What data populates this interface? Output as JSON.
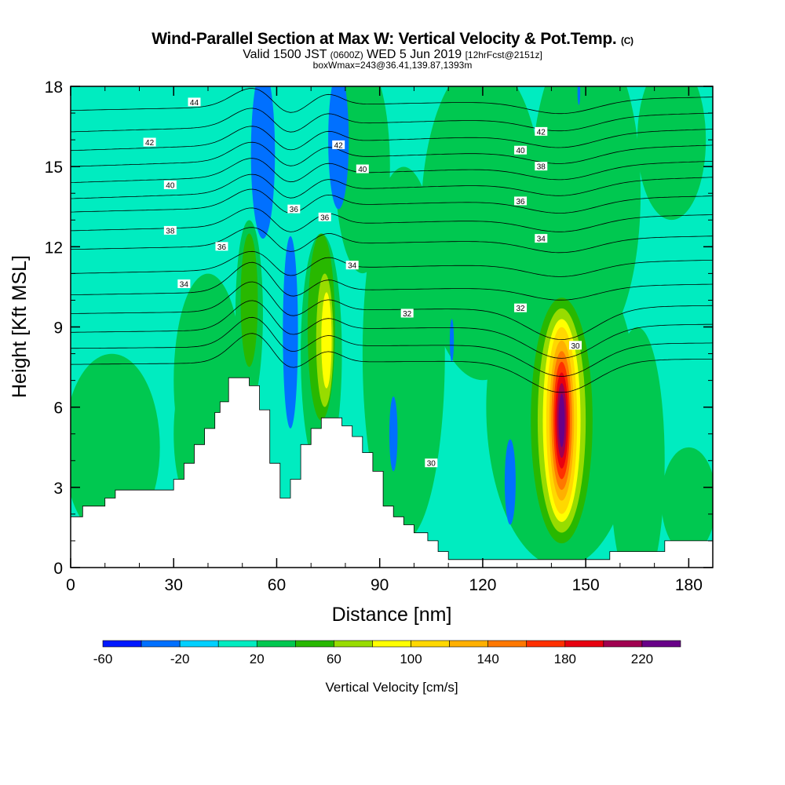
{
  "header": {
    "title": "Wind-Parallel Section at Max W: Vertical Velocity & Pot.Temp.",
    "copyright": "(C)",
    "valid_prefix": "Valid 1500 JST",
    "valid_utc": "(0600Z)",
    "valid_date": "WED 5 Jun 2019",
    "forecast": "[12hrFcst@2151z]",
    "box_info": "boxWmax=243@36.41,139.87,1393m"
  },
  "chart_data": {
    "type": "heatmap",
    "title": "Wind-Parallel Section at Max W: Vertical Velocity & Pot.Temp.",
    "xlabel": "Distance [nm]",
    "ylabel": "Height [Kft MSL]",
    "xlim": [
      0,
      187
    ],
    "ylim": [
      0,
      18
    ],
    "xticks": [
      "0",
      "30",
      "60",
      "90",
      "120",
      "150",
      "180"
    ],
    "yticks": [
      "0",
      "3",
      "6",
      "9",
      "12",
      "15",
      "18"
    ],
    "colorbar": {
      "label": "Vertical Velocity [cm/s]",
      "bounds": [
        -60,
        240
      ],
      "step": 20,
      "tick_labels": [
        "-60",
        "-20",
        "20",
        "60",
        "100",
        "140",
        "180",
        "220"
      ],
      "colors": [
        "#0018ff",
        "#0070ff",
        "#00d0ff",
        "#00ecc0",
        "#00c850",
        "#28b800",
        "#98dc00",
        "#ffff00",
        "#ffd800",
        "#ffb000",
        "#ff7800",
        "#ff3000",
        "#e80010",
        "#a00050",
        "#680088"
      ]
    },
    "terrain_kft": [
      [
        0,
        1.9
      ],
      [
        3.5,
        1.9
      ],
      [
        3.5,
        2.3
      ],
      [
        10,
        2.3
      ],
      [
        10,
        2.6
      ],
      [
        13,
        2.6
      ],
      [
        13,
        2.9
      ],
      [
        30,
        2.9
      ],
      [
        30,
        3.3
      ],
      [
        33,
        3.3
      ],
      [
        33,
        3.9
      ],
      [
        36,
        3.9
      ],
      [
        36,
        4.6
      ],
      [
        39,
        4.6
      ],
      [
        39,
        5.2
      ],
      [
        42,
        5.2
      ],
      [
        42,
        5.8
      ],
      [
        43.5,
        5.8
      ],
      [
        43.5,
        6.2
      ],
      [
        46,
        6.2
      ],
      [
        46,
        7.1
      ],
      [
        52,
        7.1
      ],
      [
        52,
        6.8
      ],
      [
        55,
        6.8
      ],
      [
        55,
        5.9
      ],
      [
        58,
        5.9
      ],
      [
        58,
        3.9
      ],
      [
        61,
        3.9
      ],
      [
        61,
        2.6
      ],
      [
        64,
        2.6
      ],
      [
        64,
        3.3
      ],
      [
        67,
        3.3
      ],
      [
        67,
        4.6
      ],
      [
        70,
        4.6
      ],
      [
        70,
        5.2
      ],
      [
        73,
        5.2
      ],
      [
        73,
        5.6
      ],
      [
        79,
        5.6
      ],
      [
        79,
        5.3
      ],
      [
        82,
        5.3
      ],
      [
        82,
        4.9
      ],
      [
        85,
        4.9
      ],
      [
        85,
        4.3
      ],
      [
        88,
        4.3
      ],
      [
        88,
        3.6
      ],
      [
        91,
        3.6
      ],
      [
        91,
        2.3
      ],
      [
        94,
        2.3
      ],
      [
        94,
        1.9
      ],
      [
        97,
        1.9
      ],
      [
        97,
        1.6
      ],
      [
        100,
        1.6
      ],
      [
        100,
        1.3
      ],
      [
        104,
        1.3
      ],
      [
        104,
        1.0
      ],
      [
        107,
        1.0
      ],
      [
        107,
        0.6
      ],
      [
        110,
        0.6
      ],
      [
        110,
        0.3
      ],
      [
        157,
        0.3
      ],
      [
        157,
        0.6
      ],
      [
        173,
        0.6
      ],
      [
        173,
        1.0
      ],
      [
        187,
        1.0
      ]
    ],
    "w_features": [
      {
        "kind": "updraft",
        "x": 143,
        "y": 5.5,
        "peak": 240
      },
      {
        "kind": "updraft",
        "x": 74,
        "y": 8.5,
        "peak": 90
      },
      {
        "kind": "updraft",
        "x": 52,
        "y": 10,
        "peak": 50
      },
      {
        "kind": "downdraft",
        "x": 57,
        "y": 15,
        "min": -40
      },
      {
        "kind": "downdraft",
        "x": 77,
        "y": 16,
        "min": -40
      },
      {
        "kind": "downdraft",
        "x": 64,
        "y": 8,
        "min": -40
      },
      {
        "kind": "downdraft",
        "x": 128,
        "y": 3.5,
        "min": -40
      }
    ],
    "theta_contours": [
      {
        "level": 30,
        "left_kft": 7.6,
        "right_kft": 7.8
      },
      {
        "level": 31,
        "left_kft": 8.2,
        "right_kft": 8.4
      },
      {
        "level": 32,
        "left_kft": 8.8,
        "right_kft": 9.1
      },
      {
        "level": 33,
        "left_kft": 9.5,
        "right_kft": 9.8
      },
      {
        "level": 34,
        "left_kft": 10.2,
        "right_kft": 10.6
      },
      {
        "level": 35,
        "left_kft": 11.0,
        "right_kft": 11.5
      },
      {
        "level": 36,
        "left_kft": 11.9,
        "right_kft": 12.4
      },
      {
        "level": 37,
        "left_kft": 12.6,
        "right_kft": 13.2
      },
      {
        "level": 38,
        "left_kft": 13.3,
        "right_kft": 13.9
      },
      {
        "level": 39,
        "left_kft": 13.8,
        "right_kft": 14.6
      },
      {
        "level": 40,
        "left_kft": 14.4,
        "right_kft": 15.2
      },
      {
        "level": 41,
        "left_kft": 15.0,
        "right_kft": 15.8
      },
      {
        "level": 42,
        "left_kft": 15.6,
        "right_kft": 16.4
      },
      {
        "level": 43,
        "left_kft": 16.3,
        "right_kft": 17.0
      },
      {
        "level": 44,
        "left_kft": 17.1,
        "right_kft": 17.6
      }
    ],
    "contour_labels": [
      {
        "text": "44",
        "x": 36,
        "y": 17.4
      },
      {
        "text": "42",
        "x": 23,
        "y": 15.9
      },
      {
        "text": "40",
        "x": 29,
        "y": 14.3
      },
      {
        "text": "38",
        "x": 29,
        "y": 12.6
      },
      {
        "text": "36",
        "x": 44,
        "y": 12.0
      },
      {
        "text": "34",
        "x": 33,
        "y": 10.6
      },
      {
        "text": "36",
        "x": 65,
        "y": 13.4
      },
      {
        "text": "36",
        "x": 74,
        "y": 13.1
      },
      {
        "text": "42",
        "x": 78,
        "y": 15.8
      },
      {
        "text": "40",
        "x": 85,
        "y": 14.9
      },
      {
        "text": "34",
        "x": 82,
        "y": 11.3
      },
      {
        "text": "32",
        "x": 98,
        "y": 9.5
      },
      {
        "text": "30",
        "x": 105,
        "y": 3.9
      },
      {
        "text": "42",
        "x": 137,
        "y": 16.3
      },
      {
        "text": "40",
        "x": 131,
        "y": 15.6
      },
      {
        "text": "38",
        "x": 137,
        "y": 15.0
      },
      {
        "text": "36",
        "x": 131,
        "y": 13.7
      },
      {
        "text": "34",
        "x": 137,
        "y": 12.3
      },
      {
        "text": "32",
        "x": 131,
        "y": 9.7
      },
      {
        "text": "30",
        "x": 147,
        "y": 8.3
      }
    ]
  }
}
